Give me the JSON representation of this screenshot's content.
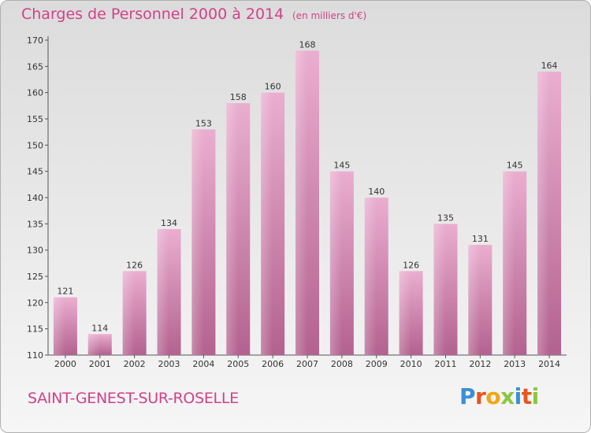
{
  "header": {
    "title": "Charges de Personnel 2000 à 2014",
    "subtitle": "(en milliers d'€)"
  },
  "footer": {
    "town": "SAINT-GENEST-SUR-ROSELLE",
    "logo": "Proxiti"
  },
  "colors": {
    "accent": "#d2418a",
    "bar_light": "#e8a8cb",
    "bar_dark": "#b8608f"
  },
  "chart_data": {
    "type": "bar",
    "categories": [
      "2000",
      "2001",
      "2002",
      "2003",
      "2004",
      "2005",
      "2006",
      "2007",
      "2008",
      "2009",
      "2010",
      "2011",
      "2012",
      "2013",
      "2014"
    ],
    "values": [
      121,
      114,
      126,
      134,
      153,
      158,
      160,
      168,
      145,
      140,
      126,
      135,
      131,
      145,
      164
    ],
    "title": "Charges de Personnel 2000 à 2014",
    "subtitle": "(en milliers d'€)",
    "ylim": [
      110,
      170
    ],
    "yticks": [
      110,
      115,
      120,
      125,
      130,
      135,
      140,
      145,
      150,
      155,
      160,
      165,
      170
    ],
    "grid": false,
    "legend": "none"
  }
}
